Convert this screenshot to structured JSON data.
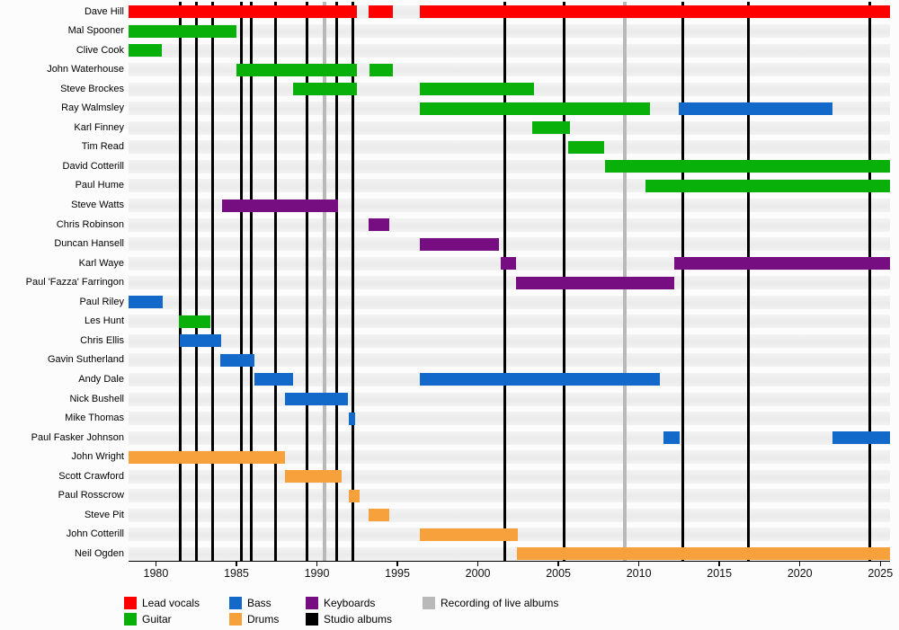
{
  "chart_data": {
    "type": "bar",
    "subtype": "band-member-timeline",
    "title": "",
    "axis": {
      "x_min": 1978.3,
      "x_max": 2025.6,
      "x_ticks": [
        1980,
        1985,
        1990,
        1995,
        2000,
        2005,
        2010,
        2015,
        2020,
        2025
      ],
      "x_tick_labels": [
        "1980",
        "1985",
        "1990",
        "1995",
        "2000",
        "2005",
        "2010",
        "2015",
        "2020",
        "2025"
      ],
      "grid": false
    },
    "roles": {
      "lead_vocals": {
        "label": "Lead vocals",
        "color": "#fe0000"
      },
      "guitar": {
        "label": "Guitar",
        "color": "#0ab00a"
      },
      "bass": {
        "label": "Bass",
        "color": "#1269ca"
      },
      "drums": {
        "label": "Drums",
        "color": "#f7a13d"
      },
      "keyboards": {
        "label": "Keyboards",
        "color": "#760d80"
      },
      "studio_albums": {
        "label": "Studio albums",
        "color": "#000000"
      },
      "live_albums": {
        "label": "Recording of live albums",
        "color": "#b9b9b9"
      }
    },
    "members": [
      {
        "name": "Dave Hill",
        "segments": [
          {
            "role": "lead_vocals",
            "start": 1978.3,
            "end": 1992.5
          },
          {
            "role": "lead_vocals",
            "start": 1993.2,
            "end": 1994.7
          },
          {
            "role": "lead_vocals",
            "start": 1996.4,
            "end": 2025.6
          }
        ]
      },
      {
        "name": "Mal Spooner",
        "segments": [
          {
            "role": "guitar",
            "start": 1978.3,
            "end": 1985.0
          }
        ]
      },
      {
        "name": "Clive Cook",
        "segments": [
          {
            "role": "guitar",
            "start": 1978.3,
            "end": 1980.35
          }
        ]
      },
      {
        "name": "John Waterhouse",
        "segments": [
          {
            "role": "guitar",
            "start": 1985.0,
            "end": 1992.5
          },
          {
            "role": "guitar",
            "start": 1993.25,
            "end": 1994.7
          }
        ]
      },
      {
        "name": "Steve Brockes",
        "segments": [
          {
            "role": "guitar",
            "start": 1988.5,
            "end": 1992.5
          },
          {
            "role": "guitar",
            "start": 1996.4,
            "end": 2003.5
          }
        ]
      },
      {
        "name": "Ray Walmsley",
        "segments": [
          {
            "role": "guitar",
            "start": 1996.4,
            "end": 2010.7
          },
          {
            "role": "bass",
            "start": 2012.5,
            "end": 2022.0
          }
        ]
      },
      {
        "name": "Karl Finney",
        "segments": [
          {
            "role": "guitar",
            "start": 2003.4,
            "end": 2005.7
          }
        ]
      },
      {
        "name": "Tim Read",
        "segments": [
          {
            "role": "guitar",
            "start": 2005.6,
            "end": 2007.85
          }
        ]
      },
      {
        "name": "David Cotterill",
        "segments": [
          {
            "role": "guitar",
            "start": 2007.9,
            "end": 2025.6
          }
        ]
      },
      {
        "name": "Paul Hume",
        "segments": [
          {
            "role": "guitar",
            "start": 2010.4,
            "end": 2025.6
          }
        ]
      },
      {
        "name": "Steve Watts",
        "segments": [
          {
            "role": "keyboards",
            "start": 1984.1,
            "end": 1991.3
          }
        ]
      },
      {
        "name": "Chris Robinson",
        "segments": [
          {
            "role": "keyboards",
            "start": 1993.2,
            "end": 1994.5
          }
        ]
      },
      {
        "name": "Duncan Hansell",
        "segments": [
          {
            "role": "keyboards",
            "start": 1996.4,
            "end": 2001.3
          }
        ]
      },
      {
        "name": "Karl Waye",
        "segments": [
          {
            "role": "keyboards",
            "start": 2001.4,
            "end": 2002.35
          },
          {
            "role": "keyboards",
            "start": 2012.2,
            "end": 2025.6
          }
        ]
      },
      {
        "name": "Paul 'Fazza' Farringon",
        "segments": [
          {
            "role": "keyboards",
            "start": 2002.35,
            "end": 2012.2
          }
        ]
      },
      {
        "name": "Paul Riley",
        "segments": [
          {
            "role": "bass",
            "start": 1978.3,
            "end": 1980.4
          }
        ]
      },
      {
        "name": "Les Hunt",
        "segments": [
          {
            "role": "guitar",
            "start": 1981.4,
            "end": 1983.4
          }
        ]
      },
      {
        "name": "Chris Ellis",
        "segments": [
          {
            "role": "bass",
            "start": 1981.5,
            "end": 1984.05
          }
        ]
      },
      {
        "name": "Gavin Sutherland",
        "segments": [
          {
            "role": "bass",
            "start": 1984.0,
            "end": 1986.1
          }
        ]
      },
      {
        "name": "Andy Dale",
        "segments": [
          {
            "role": "bass",
            "start": 1986.1,
            "end": 1988.5
          },
          {
            "role": "bass",
            "start": 1996.4,
            "end": 2011.3
          }
        ]
      },
      {
        "name": "Nick Bushell",
        "segments": [
          {
            "role": "bass",
            "start": 1988.0,
            "end": 1991.9
          }
        ]
      },
      {
        "name": "Mike Thomas",
        "segments": [
          {
            "role": "bass",
            "start": 1992.0,
            "end": 1992.4
          }
        ]
      },
      {
        "name": "Paul Fasker Johnson",
        "segments": [
          {
            "role": "bass",
            "start": 2011.5,
            "end": 2012.55
          },
          {
            "role": "bass",
            "start": 2022.0,
            "end": 2025.6
          }
        ]
      },
      {
        "name": "John Wright",
        "segments": [
          {
            "role": "drums",
            "start": 1978.3,
            "end": 1988.0
          }
        ]
      },
      {
        "name": "Scott Crawford",
        "segments": [
          {
            "role": "drums",
            "start": 1988.0,
            "end": 1991.55
          }
        ]
      },
      {
        "name": "Paul Rosscrow",
        "segments": [
          {
            "role": "drums",
            "start": 1992.0,
            "end": 1992.65
          }
        ]
      },
      {
        "name": "Steve Pit",
        "segments": [
          {
            "role": "drums",
            "start": 1993.2,
            "end": 1994.5
          }
        ]
      },
      {
        "name": "John Cotterill",
        "segments": [
          {
            "role": "drums",
            "start": 1996.4,
            "end": 2002.5
          }
        ]
      },
      {
        "name": "Neil Ogden",
        "segments": [
          {
            "role": "drums",
            "start": 2002.4,
            "end": 2025.6
          }
        ]
      }
    ],
    "studio_album_years": [
      1981.5,
      1982.5,
      1983.5,
      1985.3,
      1985.95,
      1987.45,
      1989.4,
      1991.25,
      1992.25,
      2001.65,
      2005.35,
      2012.7,
      2016.8,
      2024.35
    ],
    "live_album_years": [
      1990.45,
      2009.15
    ],
    "legend_position": "bottom"
  },
  "legend": {
    "rows": [
      [
        "lead_vocals",
        "bass",
        "keyboards",
        "live_albums"
      ],
      [
        "guitar",
        "drums",
        "studio_albums"
      ]
    ]
  }
}
